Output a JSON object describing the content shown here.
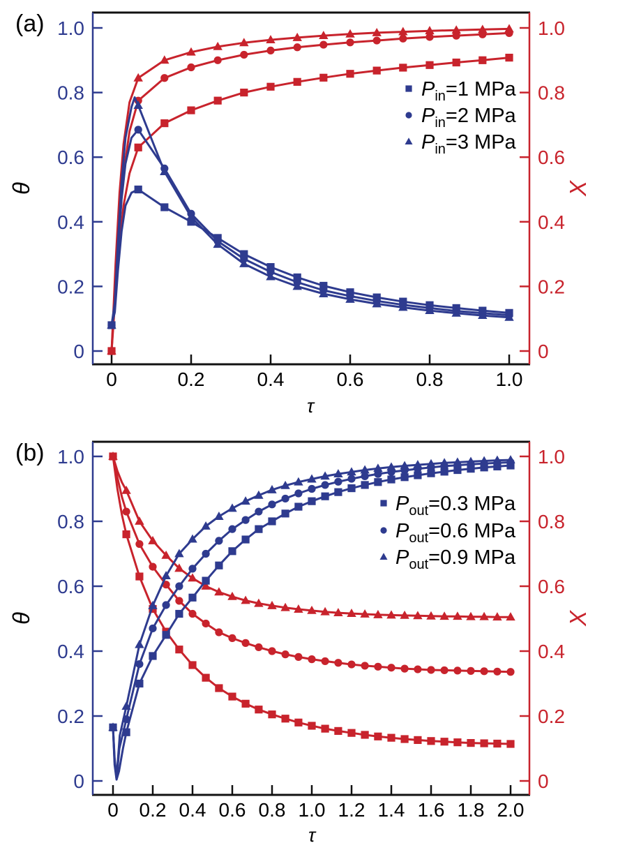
{
  "figure": {
    "background": "#ffffff",
    "colors": {
      "theta_blue": "#2E3B8F",
      "x_red": "#C8232C",
      "frame_black": "#111111",
      "label_black": "#000000"
    }
  },
  "chart_data": [
    {
      "type": "line",
      "panel_label": "(a)",
      "xlabel": "τ",
      "ylabel_left": "θ",
      "ylabel_right": "X",
      "x_max": 1.0,
      "xlim": [
        -0.05,
        1.05
      ],
      "ylim": [
        -0.04,
        1.04
      ],
      "grid": false,
      "legend_position": "upper right",
      "x_ticks": [
        0,
        0.2,
        0.4,
        0.6,
        0.8,
        1.0
      ],
      "x_tick_labels": [
        "0",
        "0.2",
        "0.4",
        "0.6",
        "0.8",
        "1.0"
      ],
      "y_ticks": [
        0,
        0.2,
        0.4,
        0.6,
        0.8,
        1.0
      ],
      "y_tick_labels": [
        "0",
        "0.2",
        "0.4",
        "0.6",
        "0.8",
        "1.0"
      ],
      "axes": {
        "left_color": "#2E3B8F",
        "right_color": "#C8232C",
        "frame_color": "#111111"
      },
      "legend": [
        {
          "marker": "square",
          "p": "P",
          "sub": "in",
          "rest": "=1 MPa"
        },
        {
          "marker": "circle",
          "p": "P",
          "sub": "in",
          "rest": "=2 MPa"
        },
        {
          "marker": "triangle",
          "p": "P",
          "sub": "in",
          "rest": "=3 MPa"
        }
      ],
      "series": [
        {
          "name": "X, Pin=1 MPa",
          "axis": "right",
          "marker": "square",
          "color": "#C8232C",
          "x": [
            0,
            0.067,
            0.133,
            0.2,
            0.267,
            0.333,
            0.4,
            0.467,
            0.533,
            0.6,
            0.667,
            0.733,
            0.8,
            0.867,
            0.933,
            1
          ],
          "y": [
            0,
            0.63,
            0.705,
            0.745,
            0.775,
            0.8,
            0.818,
            0.833,
            0.846,
            0.858,
            0.868,
            0.877,
            0.885,
            0.893,
            0.9,
            0.908
          ],
          "pre_x": [
            0.01,
            0.02,
            0.03,
            0.045
          ],
          "pre_y": [
            0.18,
            0.33,
            0.45,
            0.55
          ]
        },
        {
          "name": "X, Pin=2 MPa",
          "axis": "right",
          "marker": "circle",
          "color": "#C8232C",
          "x": [
            0,
            0.067,
            0.133,
            0.2,
            0.267,
            0.333,
            0.4,
            0.467,
            0.533,
            0.6,
            0.667,
            0.733,
            0.8,
            0.867,
            0.933,
            1
          ],
          "y": [
            0,
            0.775,
            0.845,
            0.878,
            0.9,
            0.917,
            0.93,
            0.94,
            0.948,
            0.955,
            0.961,
            0.967,
            0.972,
            0.976,
            0.98,
            0.984
          ],
          "pre_x": [
            0.01,
            0.02,
            0.03,
            0.045
          ],
          "pre_y": [
            0.22,
            0.41,
            0.55,
            0.68
          ]
        },
        {
          "name": "X, Pin=3 MPa",
          "axis": "right",
          "marker": "triangle",
          "color": "#C8232C",
          "x": [
            0,
            0.067,
            0.133,
            0.2,
            0.267,
            0.333,
            0.4,
            0.467,
            0.533,
            0.6,
            0.667,
            0.733,
            0.8,
            0.867,
            0.933,
            1
          ],
          "y": [
            0,
            0.845,
            0.9,
            0.925,
            0.942,
            0.954,
            0.963,
            0.97,
            0.976,
            0.981,
            0.985,
            0.988,
            0.991,
            0.993,
            0.995,
            0.997
          ],
          "pre_x": [
            0.01,
            0.02,
            0.03,
            0.045
          ],
          "pre_y": [
            0.27,
            0.49,
            0.64,
            0.77
          ]
        },
        {
          "name": "θ, Pin=1 MPa",
          "axis": "left",
          "marker": "square",
          "color": "#2E3B8F",
          "x": [
            0,
            0.067,
            0.133,
            0.2,
            0.267,
            0.333,
            0.4,
            0.467,
            0.533,
            0.6,
            0.667,
            0.733,
            0.8,
            0.867,
            0.933,
            1
          ],
          "y": [
            0.08,
            0.5,
            0.445,
            0.4,
            0.35,
            0.3,
            0.26,
            0.228,
            0.202,
            0.182,
            0.166,
            0.153,
            0.142,
            0.133,
            0.125,
            0.118
          ],
          "pre_x": [
            0.008,
            0.016,
            0.025,
            0.035,
            0.05
          ],
          "pre_y": [
            0.12,
            0.25,
            0.37,
            0.45,
            0.49
          ]
        },
        {
          "name": "θ, Pin=2 MPa",
          "axis": "left",
          "marker": "circle",
          "color": "#2E3B8F",
          "x": [
            0,
            0.067,
            0.133,
            0.2,
            0.267,
            0.333,
            0.4,
            0.467,
            0.533,
            0.6,
            0.667,
            0.733,
            0.8,
            0.867,
            0.933,
            1
          ],
          "y": [
            0.08,
            0.685,
            0.565,
            0.425,
            0.34,
            0.285,
            0.245,
            0.213,
            0.188,
            0.17,
            0.155,
            0.143,
            0.133,
            0.124,
            0.117,
            0.111
          ],
          "pre_x": [
            0.008,
            0.016,
            0.025,
            0.035,
            0.05
          ],
          "pre_y": [
            0.14,
            0.31,
            0.47,
            0.58,
            0.66
          ]
        },
        {
          "name": "θ, Pin=3 MPa",
          "axis": "left",
          "marker": "triangle",
          "color": "#2E3B8F",
          "x": [
            0,
            0.067,
            0.133,
            0.2,
            0.267,
            0.333,
            0.4,
            0.467,
            0.533,
            0.6,
            0.667,
            0.733,
            0.8,
            0.867,
            0.933,
            1
          ],
          "y": [
            0.08,
            0.76,
            0.555,
            0.415,
            0.33,
            0.27,
            0.23,
            0.2,
            0.177,
            0.16,
            0.146,
            0.135,
            0.125,
            0.117,
            0.11,
            0.104
          ],
          "pre_x": [
            0.008,
            0.016,
            0.025,
            0.035,
            0.05,
            0.058
          ],
          "pre_y": [
            0.15,
            0.34,
            0.52,
            0.66,
            0.755,
            0.785
          ]
        }
      ]
    },
    {
      "type": "line",
      "panel_label": "(b)",
      "xlabel": "τ",
      "ylabel_left": "θ",
      "ylabel_right": "X",
      "x_max": 2.0,
      "xlim": [
        -0.1,
        2.1
      ],
      "ylim": [
        -0.04,
        1.04
      ],
      "grid": false,
      "legend_position": "upper right",
      "x_ticks": [
        0,
        0.2,
        0.4,
        0.6,
        0.8,
        1.0,
        1.2,
        1.4,
        1.6,
        1.8,
        2.0
      ],
      "x_tick_labels": [
        "0",
        "0.2",
        "0.4",
        "0.6",
        "0.8",
        "1.0",
        "1.2",
        "1.4",
        "1.6",
        "1.8",
        "2.0"
      ],
      "y_ticks": [
        0,
        0.2,
        0.4,
        0.6,
        0.8,
        1.0
      ],
      "y_tick_labels": [
        "0",
        "0.2",
        "0.4",
        "0.6",
        "0.8",
        "1.0"
      ],
      "axes": {
        "left_color": "#2E3B8F",
        "right_color": "#C8232C",
        "frame_color": "#111111"
      },
      "legend": [
        {
          "marker": "square",
          "p": "P",
          "sub": "out",
          "rest": "=0.3 MPa"
        },
        {
          "marker": "circle",
          "p": "P",
          "sub": "out",
          "rest": "=0.6 MPa"
        },
        {
          "marker": "triangle",
          "p": "P",
          "sub": "out",
          "rest": "=0.9 MPa"
        }
      ],
      "series": [
        {
          "name": "X, Pout=0.3 MPa",
          "axis": "right",
          "marker": "square",
          "color": "#C8232C",
          "x": [
            0,
            0.067,
            0.133,
            0.2,
            0.267,
            0.333,
            0.4,
            0.467,
            0.533,
            0.6,
            0.667,
            0.733,
            0.8,
            0.867,
            0.933,
            1,
            1.067,
            1.133,
            1.2,
            1.267,
            1.333,
            1.4,
            1.467,
            1.533,
            1.6,
            1.667,
            1.733,
            1.8,
            1.867,
            1.933,
            2
          ],
          "y": [
            1,
            0.76,
            0.63,
            0.53,
            0.46,
            0.405,
            0.357,
            0.318,
            0.286,
            0.26,
            0.238,
            0.22,
            0.205,
            0.192,
            0.18,
            0.17,
            0.161,
            0.154,
            0.148,
            0.142,
            0.137,
            0.133,
            0.129,
            0.126,
            0.123,
            0.121,
            0.119,
            0.117,
            0.116,
            0.115,
            0.114
          ],
          "pre_x": [
            0.022,
            0.045
          ],
          "pre_y": [
            0.9,
            0.82
          ]
        },
        {
          "name": "X, Pout=0.6 MPa",
          "axis": "right",
          "marker": "circle",
          "color": "#C8232C",
          "x": [
            0,
            0.067,
            0.133,
            0.2,
            0.267,
            0.333,
            0.4,
            0.467,
            0.533,
            0.6,
            0.667,
            0.733,
            0.8,
            0.867,
            0.933,
            1,
            1.067,
            1.133,
            1.2,
            1.267,
            1.333,
            1.4,
            1.467,
            1.533,
            1.6,
            1.667,
            1.733,
            1.8,
            1.867,
            1.933,
            2
          ],
          "y": [
            1,
            0.83,
            0.73,
            0.66,
            0.605,
            0.555,
            0.515,
            0.485,
            0.458,
            0.44,
            0.425,
            0.412,
            0.4,
            0.39,
            0.382,
            0.375,
            0.369,
            0.364,
            0.359,
            0.355,
            0.352,
            0.349,
            0.346,
            0.344,
            0.342,
            0.341,
            0.34,
            0.339,
            0.338,
            0.337,
            0.336
          ],
          "pre_x": [
            0.022,
            0.045
          ],
          "pre_y": [
            0.935,
            0.875
          ]
        },
        {
          "name": "X, Pout=0.9 MPa",
          "axis": "right",
          "marker": "triangle",
          "color": "#C8232C",
          "x": [
            0,
            0.067,
            0.133,
            0.2,
            0.267,
            0.333,
            0.4,
            0.467,
            0.533,
            0.6,
            0.667,
            0.733,
            0.8,
            0.867,
            0.933,
            1,
            1.067,
            1.133,
            1.2,
            1.267,
            1.333,
            1.4,
            1.467,
            1.533,
            1.6,
            1.667,
            1.733,
            1.8,
            1.867,
            1.933,
            2
          ],
          "y": [
            1,
            0.895,
            0.8,
            0.74,
            0.695,
            0.655,
            0.625,
            0.6,
            0.582,
            0.568,
            0.556,
            0.547,
            0.54,
            0.534,
            0.529,
            0.525,
            0.521,
            0.518,
            0.516,
            0.514,
            0.512,
            0.511,
            0.51,
            0.509,
            0.508,
            0.507,
            0.507,
            0.506,
            0.506,
            0.505,
            0.505
          ],
          "pre_x": [
            0.022,
            0.045
          ],
          "pre_y": [
            0.955,
            0.92
          ]
        },
        {
          "name": "θ, Pout=0.3 MPa",
          "axis": "left",
          "marker": "square",
          "color": "#2E3B8F",
          "x": [
            0,
            0.067,
            0.133,
            0.2,
            0.267,
            0.333,
            0.4,
            0.467,
            0.533,
            0.6,
            0.667,
            0.733,
            0.8,
            0.867,
            0.933,
            1,
            1.067,
            1.133,
            1.2,
            1.267,
            1.333,
            1.4,
            1.467,
            1.533,
            1.6,
            1.667,
            1.733,
            1.8,
            1.867,
            1.933,
            2
          ],
          "y": [
            0.165,
            0.15,
            0.3,
            0.385,
            0.45,
            0.515,
            0.565,
            0.617,
            0.664,
            0.708,
            0.744,
            0.776,
            0.8,
            0.824,
            0.845,
            0.862,
            0.877,
            0.89,
            0.902,
            0.912,
            0.921,
            0.929,
            0.936,
            0.942,
            0.948,
            0.953,
            0.958,
            0.962,
            0.966,
            0.969,
            0.972
          ],
          "pre_x": [
            0.008,
            0.018,
            0.03,
            0.05
          ],
          "pre_y": [
            0.05,
            0.004,
            0.03,
            0.1
          ]
        },
        {
          "name": "θ, Pout=0.6 MPa",
          "axis": "left",
          "marker": "circle",
          "color": "#2E3B8F",
          "x": [
            0,
            0.067,
            0.133,
            0.2,
            0.267,
            0.333,
            0.4,
            0.467,
            0.533,
            0.6,
            0.667,
            0.733,
            0.8,
            0.867,
            0.933,
            1,
            1.067,
            1.133,
            1.2,
            1.267,
            1.333,
            1.4,
            1.467,
            1.533,
            1.6,
            1.667,
            1.733,
            1.8,
            1.867,
            1.933,
            2
          ],
          "y": [
            0.165,
            0.19,
            0.36,
            0.47,
            0.542,
            0.6,
            0.654,
            0.7,
            0.74,
            0.776,
            0.804,
            0.83,
            0.852,
            0.87,
            0.886,
            0.9,
            0.912,
            0.922,
            0.931,
            0.939,
            0.946,
            0.952,
            0.957,
            0.962,
            0.966,
            0.97,
            0.973,
            0.976,
            0.978,
            0.98,
            0.982
          ],
          "pre_x": [
            0.008,
            0.018,
            0.032
          ],
          "pre_y": [
            0.06,
            0.006,
            0.1
          ]
        },
        {
          "name": "θ, Pout=0.9 MPa",
          "axis": "left",
          "marker": "triangle",
          "color": "#2E3B8F",
          "x": [
            0,
            0.067,
            0.133,
            0.2,
            0.267,
            0.333,
            0.4,
            0.467,
            0.533,
            0.6,
            0.667,
            0.733,
            0.8,
            0.867,
            0.933,
            1,
            1.067,
            1.133,
            1.2,
            1.267,
            1.333,
            1.4,
            1.467,
            1.533,
            1.6,
            1.667,
            1.733,
            1.8,
            1.867,
            1.933,
            2
          ],
          "y": [
            0.165,
            0.23,
            0.42,
            0.54,
            0.632,
            0.7,
            0.745,
            0.785,
            0.815,
            0.84,
            0.862,
            0.88,
            0.897,
            0.91,
            0.921,
            0.93,
            0.939,
            0.946,
            0.952,
            0.958,
            0.963,
            0.967,
            0.971,
            0.974,
            0.977,
            0.98,
            0.982,
            0.984,
            0.986,
            0.988,
            0.989
          ],
          "pre_x": [
            0.008,
            0.018,
            0.034
          ],
          "pre_y": [
            0.07,
            0.01,
            0.14
          ]
        }
      ]
    }
  ]
}
